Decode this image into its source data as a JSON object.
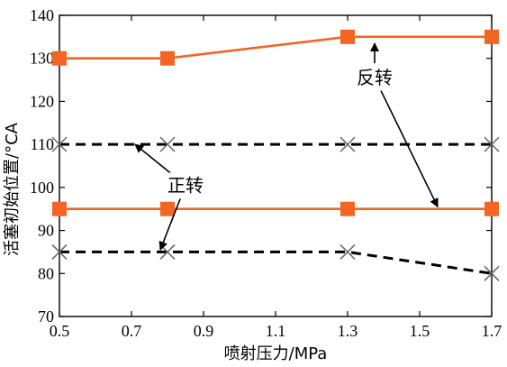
{
  "chart_data": {
    "type": "line",
    "xlabel": "喷射压力/MPa",
    "ylabel": "活塞初始位置/°CA",
    "xlim": [
      0.5,
      1.7
    ],
    "ylim": [
      70,
      140
    ],
    "xticks": [
      "0.5",
      "0.7",
      "0.9",
      "1.1",
      "1.3",
      "1.5",
      "1.7"
    ],
    "yticks": [
      "70",
      "80",
      "90",
      "100",
      "110",
      "120",
      "130",
      "140"
    ],
    "grid": false,
    "series": [
      {
        "style": "solid",
        "marker": "square",
        "color": "#F26522",
        "x": [
          0.5,
          0.8,
          1.3,
          1.7
        ],
        "y": [
          130,
          130,
          135,
          135
        ]
      },
      {
        "style": "solid",
        "marker": "square",
        "color": "#F26522",
        "x": [
          0.5,
          0.8,
          1.3,
          1.7
        ],
        "y": [
          95,
          95,
          95,
          95
        ]
      },
      {
        "style": "dashed",
        "marker": "x",
        "color": "#000000",
        "x": [
          0.5,
          0.8,
          1.3,
          1.7
        ],
        "y": [
          110,
          110,
          110,
          110
        ]
      },
      {
        "style": "dashed",
        "marker": "x",
        "color": "#000000",
        "x": [
          0.5,
          0.8,
          1.3,
          1.7
        ],
        "y": [
          85,
          85,
          85,
          80
        ]
      }
    ],
    "annotations": [
      {
        "text": "反转",
        "label_anchor": [
          1.375,
          125.5
        ],
        "arrows_to": [
          [
            1.375,
            133.5
          ],
          [
            1.55,
            95.5
          ]
        ]
      },
      {
        "text": "正转",
        "label_anchor": [
          0.85,
          100.5
        ],
        "arrows_to": [
          [
            0.71,
            110
          ],
          [
            0.78,
            85.5
          ]
        ]
      }
    ]
  }
}
